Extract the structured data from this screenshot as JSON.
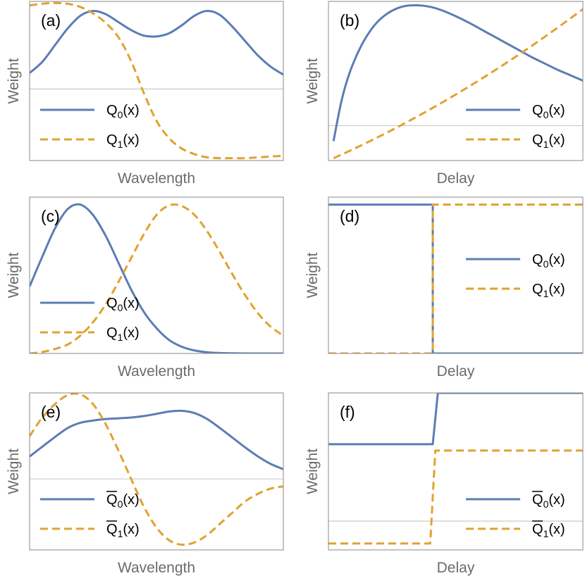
{
  "colors": {
    "q0": "#5b7db5",
    "q1": "#e0a230"
  },
  "chart_data": [
    {
      "id": "a",
      "type": "line",
      "tag": "(a)",
      "xlabel": "Wavelength",
      "ylabel": "Weight",
      "xlim": [
        0,
        1
      ],
      "ylim": [
        -0.9,
        1.1
      ],
      "zero_line": true,
      "legend_position": "bottom-left",
      "series": [
        {
          "name": "Q0(x)",
          "label_main": "Q",
          "label_sub": "0",
          "label_tail": "(x)",
          "bar": false,
          "style": "solid",
          "x": [
            0,
            0.05,
            0.1,
            0.15,
            0.2,
            0.25,
            0.3,
            0.35,
            0.4,
            0.45,
            0.5,
            0.55,
            0.6,
            0.65,
            0.7,
            0.75,
            0.8,
            0.85,
            0.9,
            0.95,
            1
          ],
          "y": [
            0.2,
            0.34,
            0.55,
            0.76,
            0.92,
            0.98,
            0.94,
            0.84,
            0.74,
            0.67,
            0.66,
            0.7,
            0.8,
            0.92,
            0.98,
            0.93,
            0.78,
            0.6,
            0.42,
            0.28,
            0.18
          ]
        },
        {
          "name": "Q1(x)",
          "label_main": "Q",
          "label_sub": "1",
          "label_tail": "(x)",
          "bar": false,
          "style": "dashed",
          "x": [
            0,
            0.05,
            0.1,
            0.15,
            0.2,
            0.25,
            0.3,
            0.35,
            0.4,
            0.45,
            0.5,
            0.55,
            0.6,
            0.65,
            0.7,
            0.75,
            0.8,
            0.85,
            0.9,
            0.95,
            1
          ],
          "y": [
            1.05,
            1.07,
            1.08,
            1.07,
            1.03,
            0.95,
            0.83,
            0.65,
            0.35,
            -0.05,
            -0.4,
            -0.62,
            -0.75,
            -0.82,
            -0.86,
            -0.87,
            -0.87,
            -0.87,
            -0.86,
            -0.85,
            -0.84
          ]
        }
      ]
    },
    {
      "id": "b",
      "type": "line",
      "tag": "(b)",
      "xlabel": "Delay",
      "ylabel": "Weight",
      "xlim": [
        0,
        1
      ],
      "ylim": [
        -0.45,
        1.6
      ],
      "zero_line": true,
      "legend_position": "bottom-right",
      "series": [
        {
          "name": "Q0(x)",
          "label_main": "Q",
          "label_sub": "0",
          "label_tail": "(x)",
          "bar": false,
          "style": "solid",
          "x": [
            0.02,
            0.05,
            0.08,
            0.12,
            0.16,
            0.2,
            0.25,
            0.3,
            0.35,
            0.4,
            0.45,
            0.5,
            0.55,
            0.6,
            0.65,
            0.7,
            0.75,
            0.8,
            0.85,
            0.9,
            0.95,
            1
          ],
          "y": [
            -0.2,
            0.3,
            0.65,
            0.97,
            1.2,
            1.36,
            1.48,
            1.54,
            1.55,
            1.53,
            1.48,
            1.41,
            1.33,
            1.24,
            1.15,
            1.06,
            0.97,
            0.88,
            0.8,
            0.72,
            0.65,
            0.58
          ]
        },
        {
          "name": "Q1(x)",
          "label_main": "Q",
          "label_sub": "1",
          "label_tail": "(x)",
          "bar": false,
          "style": "dashed",
          "x": [
            0.02,
            0.1,
            0.2,
            0.3,
            0.4,
            0.5,
            0.6,
            0.7,
            0.8,
            0.9,
            1
          ],
          "y": [
            -0.42,
            -0.3,
            -0.14,
            0.03,
            0.21,
            0.4,
            0.6,
            0.81,
            1.03,
            1.26,
            1.5
          ]
        }
      ]
    },
    {
      "id": "c",
      "type": "line",
      "tag": "(c)",
      "xlabel": "Wavelength",
      "ylabel": "Weight",
      "xlim": [
        0,
        1
      ],
      "ylim": [
        0,
        1.05
      ],
      "zero_line": false,
      "legend_position": "bottom-left",
      "series": [
        {
          "name": "Q0(x)",
          "label_main": "Q",
          "label_sub": "0",
          "label_tail": "(x)",
          "bar": false,
          "style": "solid",
          "x": [
            0,
            0.05,
            0.1,
            0.15,
            0.2,
            0.25,
            0.3,
            0.35,
            0.4,
            0.45,
            0.5,
            0.55,
            0.6,
            0.65,
            0.7,
            0.75,
            0.8,
            0.85,
            0.9,
            0.95,
            1
          ],
          "y": [
            0.45,
            0.65,
            0.84,
            0.97,
            1.0,
            0.93,
            0.79,
            0.61,
            0.43,
            0.28,
            0.17,
            0.09,
            0.045,
            0.02,
            0.008,
            0.003,
            0.001,
            0.0,
            0.0,
            0.0,
            0.0
          ]
        },
        {
          "name": "Q1(x)",
          "label_main": "Q",
          "label_sub": "1",
          "label_tail": "(x)",
          "bar": false,
          "style": "dashed",
          "x": [
            0,
            0.05,
            0.1,
            0.15,
            0.2,
            0.25,
            0.3,
            0.35,
            0.4,
            0.45,
            0.5,
            0.55,
            0.6,
            0.65,
            0.7,
            0.75,
            0.8,
            0.85,
            0.9,
            0.95,
            1
          ],
          "y": [
            0.0,
            0.01,
            0.03,
            0.06,
            0.12,
            0.21,
            0.33,
            0.48,
            0.64,
            0.8,
            0.93,
            0.995,
            0.99,
            0.93,
            0.82,
            0.68,
            0.53,
            0.39,
            0.27,
            0.18,
            0.12
          ]
        }
      ]
    },
    {
      "id": "d",
      "type": "line",
      "tag": "(d)",
      "xlabel": "Delay",
      "ylabel": "Weight",
      "xlim": [
        0,
        1
      ],
      "ylim": [
        0,
        1.05
      ],
      "zero_line": false,
      "legend_position": "middle-right",
      "series": [
        {
          "name": "Q0(x)",
          "label_main": "Q",
          "label_sub": "0",
          "label_tail": "(x)",
          "bar": false,
          "style": "solid",
          "x": [
            0,
            0.41,
            0.41,
            1
          ],
          "y": [
            1.0,
            1.0,
            0.0,
            0.0
          ]
        },
        {
          "name": "Q1(x)",
          "label_main": "Q",
          "label_sub": "1",
          "label_tail": "(x)",
          "bar": false,
          "style": "dashed",
          "x": [
            0,
            0.41,
            0.41,
            1
          ],
          "y": [
            0.0,
            0.0,
            1.0,
            1.0
          ]
        }
      ]
    },
    {
      "id": "e",
      "type": "line",
      "tag": "(e)",
      "xlabel": "Wavelength",
      "ylabel": "Weight",
      "xlim": [
        0,
        1
      ],
      "ylim": [
        -0.95,
        1.15
      ],
      "zero_line": true,
      "legend_position": "bottom-left",
      "series": [
        {
          "name": "Q̄0(x)",
          "label_main": "Q",
          "label_sub": "0",
          "label_tail": "(x)",
          "bar": true,
          "style": "solid",
          "x": [
            0,
            0.05,
            0.1,
            0.15,
            0.2,
            0.25,
            0.3,
            0.35,
            0.4,
            0.45,
            0.5,
            0.55,
            0.6,
            0.65,
            0.7,
            0.75,
            0.8,
            0.85,
            0.9,
            0.95,
            1
          ],
          "y": [
            0.3,
            0.43,
            0.56,
            0.68,
            0.75,
            0.78,
            0.8,
            0.81,
            0.82,
            0.84,
            0.87,
            0.9,
            0.91,
            0.88,
            0.8,
            0.68,
            0.55,
            0.42,
            0.3,
            0.2,
            0.13
          ]
        },
        {
          "name": "Q̄1(x)",
          "label_main": "Q",
          "label_sub": "1",
          "label_tail": "(x)",
          "bar": true,
          "style": "dashed",
          "x": [
            0,
            0.05,
            0.1,
            0.15,
            0.2,
            0.25,
            0.3,
            0.35,
            0.4,
            0.45,
            0.5,
            0.55,
            0.6,
            0.65,
            0.7,
            0.75,
            0.8,
            0.85,
            0.9,
            0.95,
            1
          ],
          "y": [
            0.57,
            0.82,
            1.0,
            1.12,
            1.13,
            1.0,
            0.73,
            0.38,
            0.0,
            -0.37,
            -0.65,
            -0.82,
            -0.88,
            -0.85,
            -0.75,
            -0.6,
            -0.45,
            -0.3,
            -0.2,
            -0.13,
            -0.1
          ]
        }
      ]
    },
    {
      "id": "f",
      "type": "line",
      "tag": "(f)",
      "xlabel": "Delay",
      "ylabel": "Weight",
      "xlim": [
        0,
        1
      ],
      "ylim": [
        -0.45,
        2.0
      ],
      "zero_line": true,
      "legend_position": "bottom-right",
      "series": [
        {
          "name": "Q̄0(x)",
          "label_main": "Q",
          "label_sub": "0",
          "label_tail": "(x)",
          "bar": true,
          "style": "solid",
          "x": [
            0,
            0.41,
            0.43,
            1
          ],
          "y": [
            1.2,
            1.2,
            2.0,
            2.0
          ]
        },
        {
          "name": "Q̄1(x)",
          "label_main": "Q",
          "label_sub": "1",
          "label_tail": "(x)",
          "bar": true,
          "style": "dashed",
          "x": [
            0,
            0.4,
            0.42,
            1
          ],
          "y": [
            -0.35,
            -0.35,
            1.1,
            1.1
          ]
        }
      ]
    }
  ]
}
